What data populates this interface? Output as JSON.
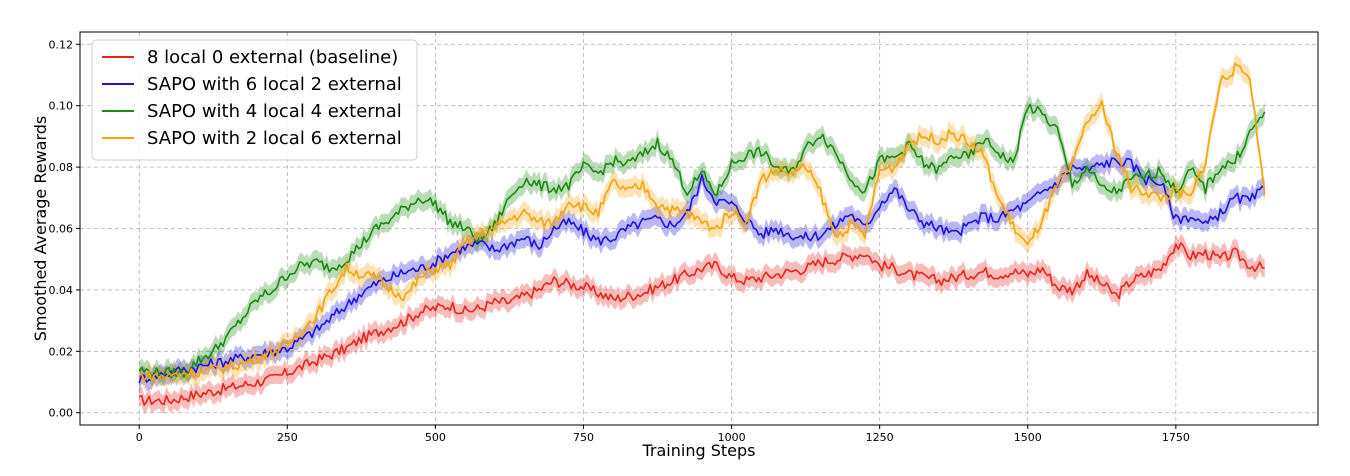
{
  "chart_data": {
    "type": "line",
    "title": "",
    "xlabel": "Training Steps",
    "ylabel": "Smoothed Average Rewards",
    "xlim": [
      -100,
      1990
    ],
    "ylim": [
      -0.004,
      0.124
    ],
    "xticks": [
      0,
      250,
      500,
      750,
      1000,
      1250,
      1500,
      1750
    ],
    "yticks": [
      0.0,
      0.02,
      0.04,
      0.06,
      0.08,
      0.1,
      0.12
    ],
    "xtick_labels": [
      "0",
      "250",
      "500",
      "750",
      "1000",
      "1250",
      "1500",
      "1750"
    ],
    "ytick_labels": [
      "0.00",
      "0.02",
      "0.04",
      "0.06",
      "0.08",
      "0.10",
      "0.12"
    ],
    "grid": true,
    "legend_position": "top-left",
    "x": [
      0,
      25,
      50,
      75,
      100,
      125,
      150,
      175,
      200,
      225,
      250,
      275,
      300,
      325,
      350,
      375,
      400,
      425,
      450,
      475,
      500,
      525,
      550,
      575,
      600,
      625,
      650,
      675,
      700,
      725,
      750,
      775,
      800,
      825,
      850,
      875,
      900,
      925,
      950,
      975,
      1000,
      1025,
      1050,
      1075,
      1100,
      1125,
      1150,
      1175,
      1200,
      1225,
      1250,
      1275,
      1300,
      1325,
      1350,
      1375,
      1400,
      1425,
      1450,
      1475,
      1500,
      1525,
      1550,
      1575,
      1600,
      1625,
      1650,
      1675,
      1700,
      1725,
      1750,
      1775,
      1800,
      1825,
      1850,
      1875,
      1900
    ],
    "series": [
      {
        "name": "8 local 0 external (baseline)",
        "color": "#e8241b",
        "band": 0.003,
        "values": [
          0.004,
          0.004,
          0.004,
          0.005,
          0.006,
          0.007,
          0.008,
          0.009,
          0.01,
          0.011,
          0.013,
          0.015,
          0.017,
          0.019,
          0.021,
          0.024,
          0.026,
          0.028,
          0.03,
          0.033,
          0.034,
          0.035,
          0.033,
          0.034,
          0.036,
          0.036,
          0.038,
          0.04,
          0.043,
          0.042,
          0.041,
          0.039,
          0.037,
          0.038,
          0.039,
          0.041,
          0.043,
          0.045,
          0.047,
          0.048,
          0.044,
          0.043,
          0.044,
          0.045,
          0.046,
          0.047,
          0.049,
          0.05,
          0.051,
          0.052,
          0.048,
          0.047,
          0.045,
          0.044,
          0.043,
          0.044,
          0.045,
          0.046,
          0.045,
          0.046,
          0.045,
          0.047,
          0.041,
          0.04,
          0.045,
          0.042,
          0.038,
          0.043,
          0.045,
          0.047,
          0.055,
          0.051,
          0.052,
          0.05,
          0.052,
          0.048,
          0.047
        ]
      },
      {
        "name": "SAPO with 6 local 2 external",
        "color": "#1f14e0",
        "band": 0.003,
        "values": [
          0.011,
          0.012,
          0.013,
          0.014,
          0.015,
          0.016,
          0.017,
          0.018,
          0.019,
          0.02,
          0.021,
          0.024,
          0.027,
          0.031,
          0.035,
          0.039,
          0.042,
          0.044,
          0.046,
          0.047,
          0.049,
          0.052,
          0.054,
          0.055,
          0.053,
          0.055,
          0.057,
          0.054,
          0.06,
          0.062,
          0.059,
          0.056,
          0.057,
          0.06,
          0.062,
          0.063,
          0.061,
          0.065,
          0.076,
          0.069,
          0.068,
          0.063,
          0.058,
          0.06,
          0.058,
          0.057,
          0.058,
          0.061,
          0.065,
          0.06,
          0.068,
          0.073,
          0.066,
          0.062,
          0.06,
          0.058,
          0.061,
          0.064,
          0.063,
          0.066,
          0.068,
          0.072,
          0.075,
          0.08,
          0.079,
          0.081,
          0.082,
          0.081,
          0.076,
          0.075,
          0.063,
          0.064,
          0.061,
          0.065,
          0.07,
          0.069,
          0.073
        ]
      },
      {
        "name": "SAPO with 4 local 4 external",
        "color": "#1a8a12",
        "band": 0.003,
        "values": [
          0.014,
          0.013,
          0.013,
          0.013,
          0.017,
          0.02,
          0.025,
          0.031,
          0.037,
          0.04,
          0.045,
          0.048,
          0.049,
          0.047,
          0.05,
          0.055,
          0.06,
          0.063,
          0.067,
          0.07,
          0.068,
          0.062,
          0.06,
          0.056,
          0.061,
          0.07,
          0.076,
          0.074,
          0.073,
          0.074,
          0.08,
          0.078,
          0.082,
          0.081,
          0.084,
          0.088,
          0.082,
          0.072,
          0.078,
          0.071,
          0.081,
          0.084,
          0.085,
          0.08,
          0.078,
          0.086,
          0.091,
          0.085,
          0.077,
          0.072,
          0.082,
          0.083,
          0.087,
          0.081,
          0.079,
          0.084,
          0.083,
          0.089,
          0.085,
          0.081,
          0.1,
          0.097,
          0.092,
          0.074,
          0.08,
          0.073,
          0.072,
          0.076,
          0.077,
          0.079,
          0.072,
          0.079,
          0.073,
          0.08,
          0.082,
          0.091,
          0.098
        ]
      },
      {
        "name": "SAPO with 2 local 6 external",
        "color": "#f5a30a",
        "band": 0.003,
        "values": [
          0.012,
          0.012,
          0.012,
          0.013,
          0.013,
          0.014,
          0.015,
          0.016,
          0.018,
          0.02,
          0.022,
          0.027,
          0.032,
          0.04,
          0.047,
          0.045,
          0.044,
          0.04,
          0.038,
          0.044,
          0.047,
          0.048,
          0.055,
          0.058,
          0.06,
          0.063,
          0.065,
          0.062,
          0.062,
          0.069,
          0.067,
          0.065,
          0.075,
          0.072,
          0.074,
          0.068,
          0.066,
          0.065,
          0.062,
          0.06,
          0.066,
          0.062,
          0.076,
          0.079,
          0.078,
          0.08,
          0.072,
          0.057,
          0.061,
          0.058,
          0.079,
          0.08,
          0.088,
          0.09,
          0.089,
          0.091,
          0.088,
          0.084,
          0.07,
          0.061,
          0.054,
          0.063,
          0.074,
          0.08,
          0.095,
          0.1,
          0.085,
          0.073,
          0.072,
          0.07,
          0.072,
          0.07,
          0.082,
          0.108,
          0.112,
          0.11,
          0.071
        ]
      }
    ]
  }
}
